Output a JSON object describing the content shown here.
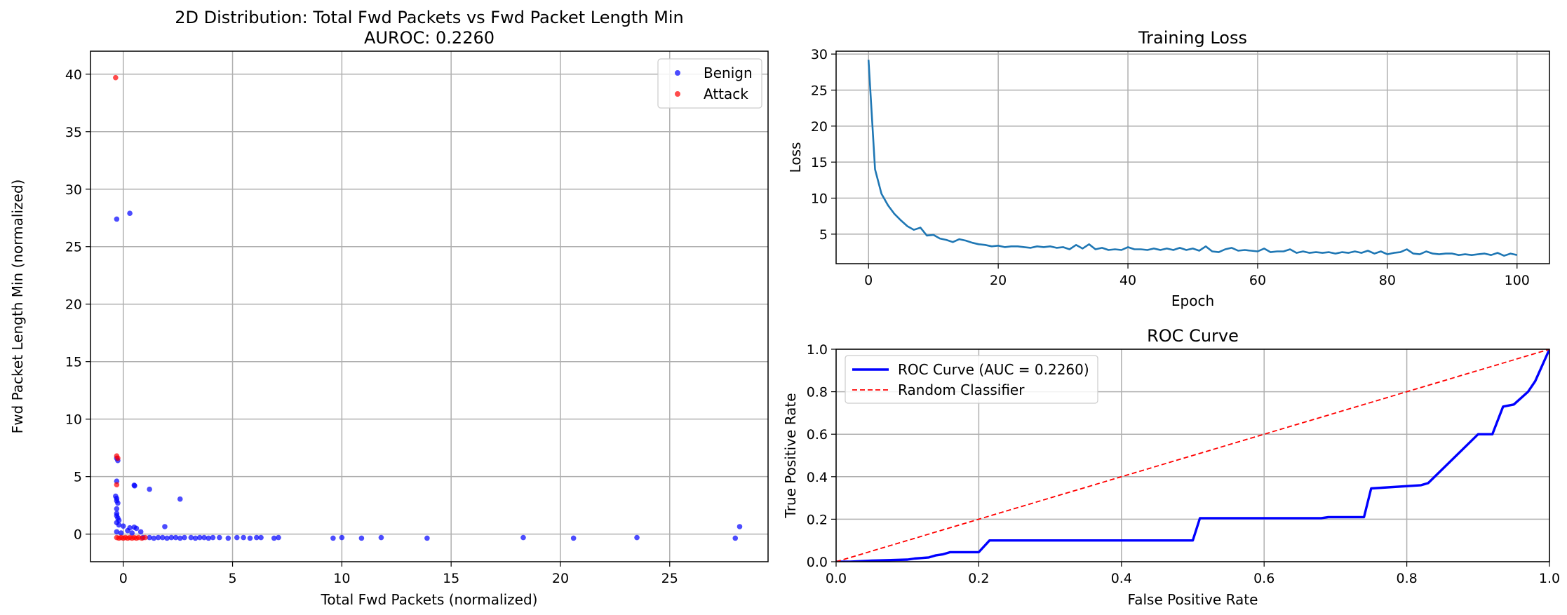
{
  "chart_data": [
    {
      "type": "scatter",
      "title": "2D Distribution: Total Fwd Packets vs Fwd Packet Length Min",
      "subtitle": "AUROC: 0.2260",
      "xlabel": "Total Fwd Packets (normalized)",
      "ylabel": "Fwd Packet Length Min (normalized)",
      "xlim": [
        -1.5,
        29.5
      ],
      "ylim": [
        -2.4,
        42
      ],
      "xticks": [
        0,
        5,
        10,
        15,
        20,
        25
      ],
      "yticks": [
        0,
        5,
        10,
        15,
        20,
        25,
        30,
        35,
        40
      ],
      "grid": true,
      "legend": "top-right",
      "series": [
        {
          "name": "Benign",
          "color": "#0000ff",
          "points": [
            [
              -0.3,
              27.4
            ],
            [
              0.3,
              27.9
            ],
            [
              -0.3,
              6.6
            ],
            [
              -0.25,
              6.4
            ],
            [
              -0.3,
              4.6
            ],
            [
              0.5,
              4.25
            ],
            [
              0.52,
              4.2
            ],
            [
              1.2,
              3.9
            ],
            [
              2.6,
              3.05
            ],
            [
              -0.35,
              3.3
            ],
            [
              -0.3,
              3.1
            ],
            [
              -0.3,
              2.9
            ],
            [
              -0.25,
              2.7
            ],
            [
              -0.3,
              2.2
            ],
            [
              -0.3,
              1.8
            ],
            [
              -0.3,
              1.6
            ],
            [
              -0.25,
              1.4
            ],
            [
              -0.2,
              1.2
            ],
            [
              -0.3,
              1.0
            ],
            [
              -0.2,
              0.8
            ],
            [
              0.0,
              0.7
            ],
            [
              0.3,
              0.55
            ],
            [
              0.5,
              0.6
            ],
            [
              0.6,
              0.5
            ],
            [
              0.2,
              0.3
            ],
            [
              0.8,
              0.2
            ],
            [
              1.9,
              0.65
            ],
            [
              -0.3,
              0.2
            ],
            [
              -0.1,
              0.1
            ],
            [
              0.4,
              0.1
            ],
            [
              0.9,
              -0.3
            ],
            [
              1.2,
              -0.3
            ],
            [
              1.4,
              -0.35
            ],
            [
              1.6,
              -0.3
            ],
            [
              1.8,
              -0.3
            ],
            [
              2.0,
              -0.35
            ],
            [
              2.2,
              -0.3
            ],
            [
              2.4,
              -0.3
            ],
            [
              2.6,
              -0.35
            ],
            [
              2.8,
              -0.3
            ],
            [
              3.1,
              -0.3
            ],
            [
              3.3,
              -0.35
            ],
            [
              3.5,
              -0.3
            ],
            [
              3.7,
              -0.3
            ],
            [
              3.9,
              -0.35
            ],
            [
              4.1,
              -0.3
            ],
            [
              4.4,
              -0.3
            ],
            [
              4.8,
              -0.35
            ],
            [
              5.2,
              -0.3
            ],
            [
              5.5,
              -0.3
            ],
            [
              5.8,
              -0.35
            ],
            [
              6.1,
              -0.3
            ],
            [
              6.3,
              -0.3
            ],
            [
              6.9,
              -0.35
            ],
            [
              7.1,
              -0.3
            ],
            [
              9.6,
              -0.35
            ],
            [
              10.0,
              -0.3
            ],
            [
              10.9,
              -0.35
            ],
            [
              11.8,
              -0.3
            ],
            [
              13.9,
              -0.35
            ],
            [
              18.3,
              -0.3
            ],
            [
              20.6,
              -0.35
            ],
            [
              23.5,
              -0.3
            ],
            [
              28.0,
              -0.35
            ],
            [
              28.2,
              0.65
            ]
          ]
        },
        {
          "name": "Attack",
          "color": "#ff0000",
          "points": [
            [
              -0.35,
              39.7
            ],
            [
              -0.3,
              6.8
            ],
            [
              -0.25,
              6.6
            ],
            [
              -0.3,
              4.3
            ],
            [
              -0.3,
              -0.3
            ],
            [
              -0.2,
              -0.35
            ],
            [
              -0.1,
              -0.3
            ],
            [
              0.0,
              -0.35
            ],
            [
              0.1,
              -0.3
            ],
            [
              0.2,
              -0.35
            ],
            [
              0.3,
              -0.3
            ],
            [
              0.4,
              -0.35
            ],
            [
              0.5,
              -0.3
            ],
            [
              0.6,
              -0.35
            ],
            [
              0.7,
              -0.3
            ],
            [
              0.85,
              -0.35
            ],
            [
              1.0,
              -0.3
            ]
          ]
        }
      ]
    },
    {
      "type": "line",
      "title": "Training Loss",
      "xlabel": "Epoch",
      "ylabel": "Loss",
      "xlim": [
        -5,
        105
      ],
      "ylim": [
        0.9,
        30.4
      ],
      "xticks": [
        0,
        20,
        40,
        60,
        80,
        100
      ],
      "yticks": [
        5,
        10,
        15,
        20,
        25,
        30
      ],
      "grid": true,
      "color": "#1f77b4",
      "values": [
        29.2,
        14.0,
        10.6,
        9.0,
        7.8,
        6.9,
        6.1,
        5.6,
        5.9,
        4.8,
        4.9,
        4.4,
        4.2,
        3.9,
        4.3,
        4.1,
        3.8,
        3.6,
        3.5,
        3.3,
        3.4,
        3.2,
        3.3,
        3.3,
        3.2,
        3.1,
        3.3,
        3.2,
        3.3,
        3.1,
        3.2,
        2.9,
        3.5,
        3.0,
        3.6,
        2.9,
        3.1,
        2.8,
        2.9,
        2.8,
        3.2,
        2.9,
        2.9,
        2.8,
        3.0,
        2.8,
        3.0,
        2.8,
        3.1,
        2.8,
        3.0,
        2.7,
        3.3,
        2.6,
        2.5,
        2.9,
        3.1,
        2.7,
        2.8,
        2.7,
        2.6,
        3.0,
        2.5,
        2.6,
        2.6,
        2.9,
        2.4,
        2.6,
        2.4,
        2.5,
        2.4,
        2.5,
        2.3,
        2.5,
        2.4,
        2.6,
        2.4,
        2.7,
        2.3,
        2.6,
        2.2,
        2.4,
        2.5,
        2.9,
        2.3,
        2.2,
        2.6,
        2.3,
        2.2,
        2.3,
        2.3,
        2.1,
        2.2,
        2.1,
        2.2,
        2.3,
        2.1,
        2.4,
        2.0,
        2.3,
        2.1
      ]
    },
    {
      "type": "line",
      "title": "ROC Curve",
      "xlabel": "False Positive Rate",
      "ylabel": "True Positive Rate",
      "xlim": [
        0,
        1
      ],
      "ylim": [
        0,
        1
      ],
      "xticks": [
        0.0,
        0.2,
        0.4,
        0.6,
        0.8,
        1.0
      ],
      "yticks": [
        0.0,
        0.2,
        0.4,
        0.6,
        0.8,
        1.0
      ],
      "grid": true,
      "legend": "top-left",
      "series": [
        {
          "name": "ROC Curve (AUC = 0.2260)",
          "color": "#0000ff",
          "style": "solid",
          "x": [
            0.0,
            0.02,
            0.05,
            0.1,
            0.11,
            0.13,
            0.14,
            0.15,
            0.16,
            0.2,
            0.215,
            0.5,
            0.51,
            0.68,
            0.69,
            0.74,
            0.75,
            0.82,
            0.83,
            0.9,
            0.92,
            0.935,
            0.95,
            0.97,
            0.98,
            1.0
          ],
          "y": [
            0.0,
            0.0,
            0.005,
            0.01,
            0.015,
            0.02,
            0.03,
            0.035,
            0.045,
            0.045,
            0.1,
            0.1,
            0.205,
            0.205,
            0.21,
            0.21,
            0.345,
            0.36,
            0.37,
            0.6,
            0.6,
            0.73,
            0.74,
            0.8,
            0.85,
            1.0
          ]
        },
        {
          "name": "Random Classifier",
          "color": "#ff0000",
          "style": "dashed",
          "x": [
            0.0,
            1.0
          ],
          "y": [
            0.0,
            1.0
          ]
        }
      ]
    }
  ]
}
